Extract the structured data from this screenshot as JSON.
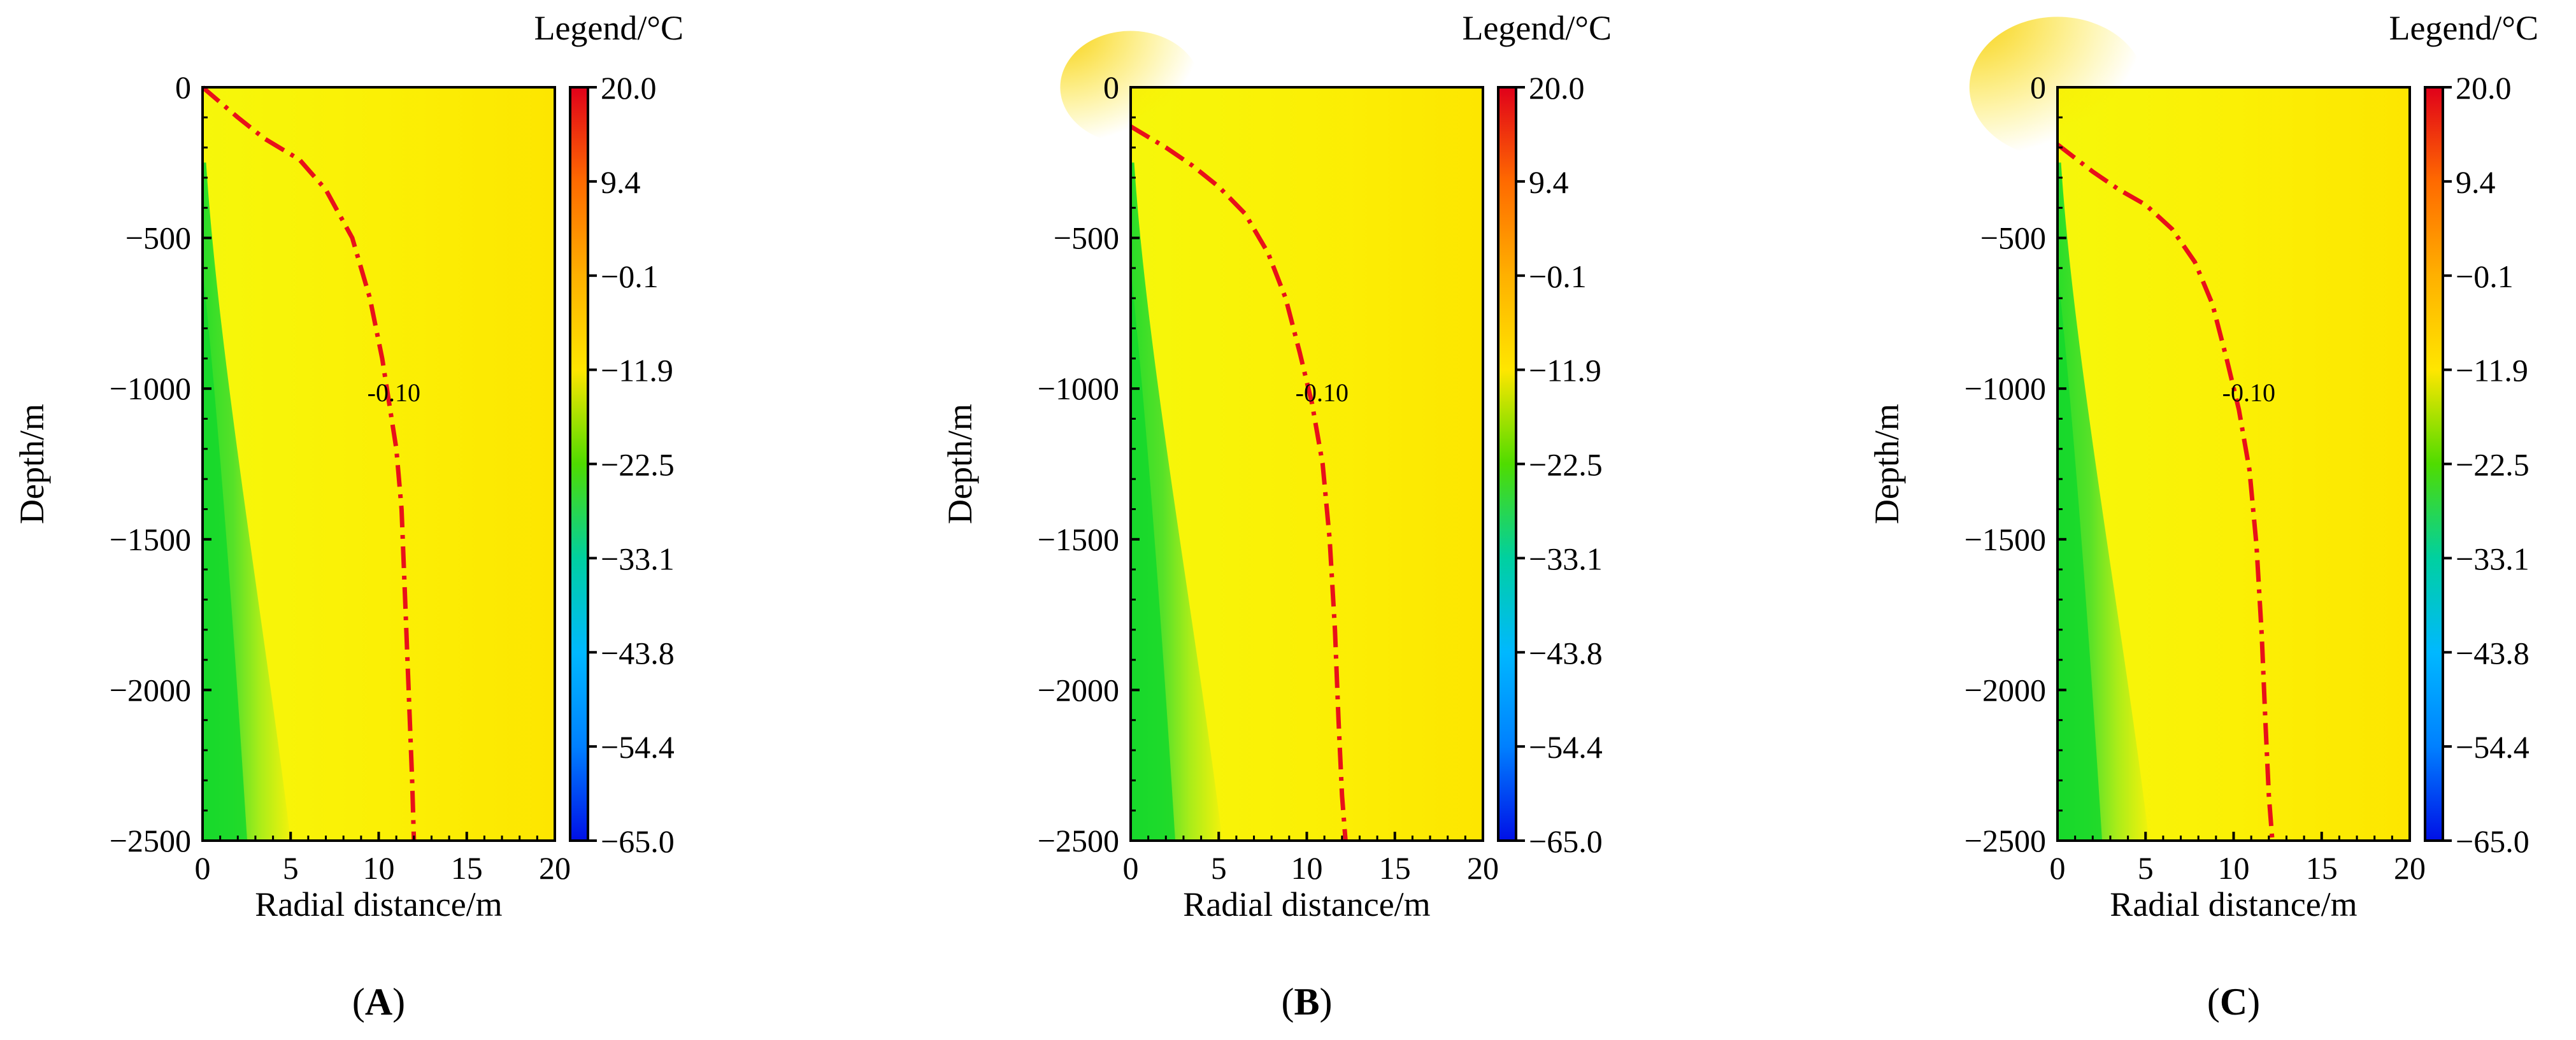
{
  "legend_title": "Legend/°C",
  "colorbar_ticks": [
    "20.0",
    "9.4",
    "−0.1",
    "−11.9",
    "−22.5",
    "−33.1",
    "−43.8",
    "−54.4",
    "−65.0"
  ],
  "colorbar_colors": [
    "#e0001a",
    "#ff6a00",
    "#ffb000",
    "#ffe600",
    "#4fdc00",
    "#00d0a0",
    "#00b8ff",
    "#0080ff",
    "#0010e6"
  ],
  "chart_data": [
    {
      "type": "heatmap",
      "panel_label": "A",
      "xlabel": "Radial distance/m",
      "ylabel": "Depth/m",
      "xlim": [
        0,
        20
      ],
      "ylim": [
        -2500,
        0
      ],
      "xticks": [
        "0",
        "5",
        "10",
        "15",
        "20"
      ],
      "yticks": [
        "0",
        "−500",
        "−1000",
        "−1500",
        "−2000",
        "−2500"
      ],
      "contour": {
        "label": "-0.10",
        "label_at": [
          10.5,
          -1000
        ],
        "points": [
          [
            0,
            0
          ],
          [
            2,
            -100
          ],
          [
            3.5,
            -170
          ],
          [
            5.5,
            -240
          ],
          [
            7,
            -340
          ],
          [
            8.5,
            -500
          ],
          [
            9.5,
            -700
          ],
          [
            10.2,
            -900
          ],
          [
            10.6,
            -1050
          ],
          [
            11,
            -1200
          ],
          [
            11.3,
            -1400
          ],
          [
            11.5,
            -1700
          ],
          [
            11.7,
            -2000
          ],
          [
            11.9,
            -2300
          ],
          [
            12,
            -2500
          ]
        ]
      },
      "cold_front_x_at_top": 0.2,
      "cold_front_x_at_bottom": 5.0,
      "surface_warm_zone_extent": 0
    },
    {
      "type": "heatmap",
      "panel_label": "B",
      "xlabel": "Radial distance/m",
      "ylabel": "Depth/m",
      "xlim": [
        0,
        20
      ],
      "ylim": [
        -2500,
        0
      ],
      "xticks": [
        "0",
        "5",
        "10",
        "15",
        "20"
      ],
      "yticks": [
        "0",
        "−500",
        "−1000",
        "−1500",
        "−2000",
        "−2500"
      ],
      "contour": {
        "label": "-0.10",
        "label_at": [
          10.5,
          -1000
        ],
        "points": [
          [
            0,
            -130
          ],
          [
            2,
            -200
          ],
          [
            3.5,
            -260
          ],
          [
            5,
            -330
          ],
          [
            6.5,
            -420
          ],
          [
            7.8,
            -550
          ],
          [
            8.8,
            -700
          ],
          [
            9.6,
            -880
          ],
          [
            10.3,
            -1050
          ],
          [
            10.9,
            -1250
          ],
          [
            11.3,
            -1500
          ],
          [
            11.6,
            -1800
          ],
          [
            11.8,
            -2100
          ],
          [
            12,
            -2350
          ],
          [
            12.2,
            -2500
          ]
        ]
      },
      "cold_front_x_at_top": 0.2,
      "cold_front_x_at_bottom": 5.2,
      "surface_warm_zone_extent": 4
    },
    {
      "type": "heatmap",
      "panel_label": "C",
      "xlabel": "Radial distance/m",
      "ylabel": "Depth/m",
      "xlim": [
        0,
        20
      ],
      "ylim": [
        -2500,
        0
      ],
      "xticks": [
        "0",
        "5",
        "10",
        "15",
        "20"
      ],
      "yticks": [
        "0",
        "−500",
        "−1000",
        "−1500",
        "−2000",
        "−2500"
      ],
      "contour": {
        "label": "-0.10",
        "label_at": [
          10.5,
          -1000
        ],
        "points": [
          [
            0,
            -190
          ],
          [
            2,
            -280
          ],
          [
            3.5,
            -340
          ],
          [
            5,
            -390
          ],
          [
            6.5,
            -470
          ],
          [
            7.8,
            -580
          ],
          [
            8.8,
            -720
          ],
          [
            9.6,
            -900
          ],
          [
            10.3,
            -1070
          ],
          [
            10.9,
            -1270
          ],
          [
            11.3,
            -1520
          ],
          [
            11.6,
            -1820
          ],
          [
            11.8,
            -2100
          ],
          [
            12,
            -2350
          ],
          [
            12.2,
            -2500
          ]
        ]
      },
      "cold_front_x_at_top": 0.2,
      "cold_front_x_at_bottom": 5.2,
      "surface_warm_zone_extent": 5
    }
  ]
}
